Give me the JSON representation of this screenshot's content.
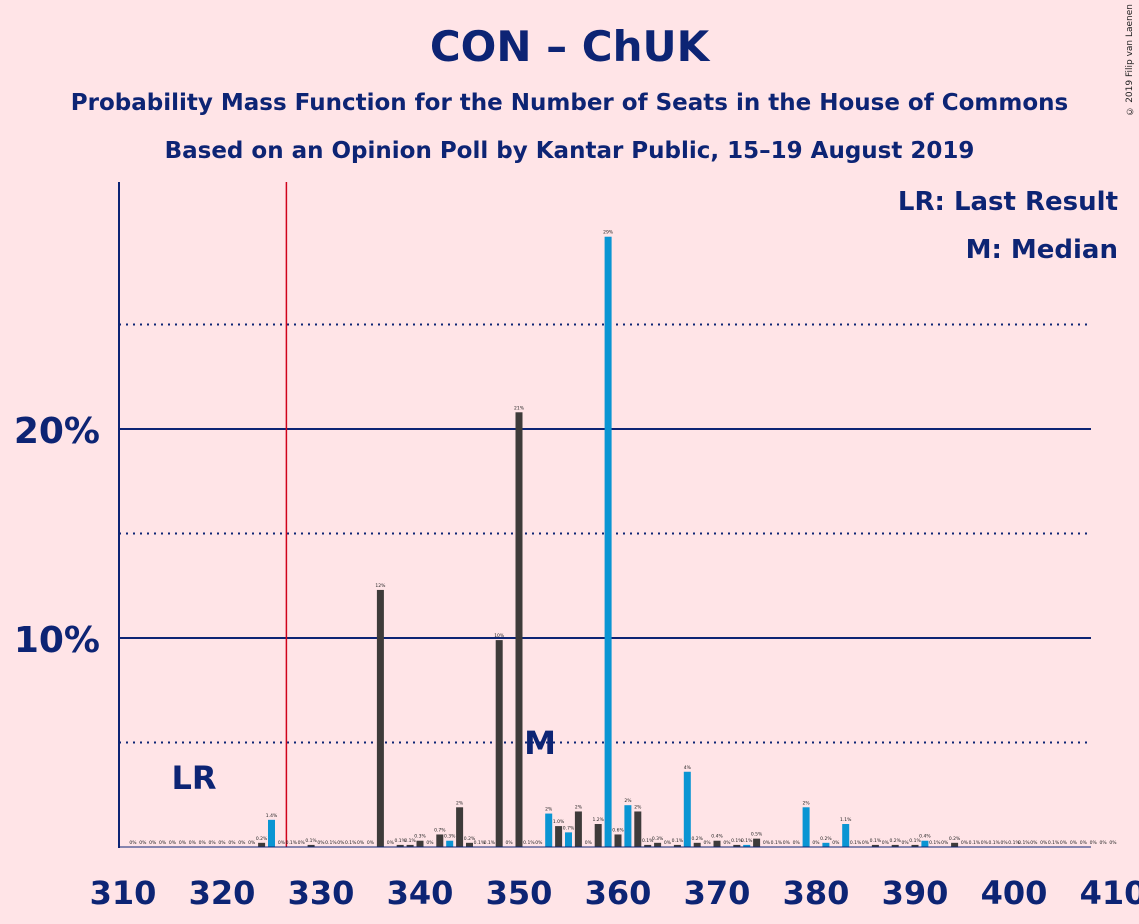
{
  "title": "CON – ChUK",
  "subtitle1": "Probability Mass Function for the Number of Seats in the House of Commons",
  "subtitle2": "Based on an Opinion Poll by Kantar Public, 15–19 August 2019",
  "copyright": "© 2019 Filip van Laenen",
  "legend": {
    "lr": "LR: Last Result",
    "median": "M: Median"
  },
  "colors": {
    "background": "#FFE4E7",
    "axis": "#0D2474",
    "bar_dark": "#3E3B3A",
    "bar_blue": "#0A95D3",
    "last_result_line": "#D0021B"
  },
  "chart_data": {
    "type": "bar",
    "x_range": [
      310,
      410
    ],
    "y_range": [
      0,
      32
    ],
    "x_ticks": [
      310,
      320,
      330,
      340,
      350,
      360,
      370,
      380,
      390,
      400,
      410
    ],
    "y_ticks": [
      {
        "value": 10,
        "label": "10%"
      },
      {
        "value": 20,
        "label": "20%"
      }
    ],
    "dotted_gridlines": [
      5,
      15,
      25
    ],
    "last_result": {
      "seat": 326,
      "label": "LR"
    },
    "median": {
      "seat": 353,
      "label": "M"
    },
    "bars": [
      {
        "seat": 311,
        "value": 0,
        "label": "0%",
        "color": "dark"
      },
      {
        "seat": 312,
        "value": 0,
        "label": "0%",
        "color": "dark"
      },
      {
        "seat": 313,
        "value": 0,
        "label": "0%",
        "color": "dark"
      },
      {
        "seat": 314,
        "value": 0,
        "label": "0%",
        "color": "dark"
      },
      {
        "seat": 315,
        "value": 0,
        "label": "0%",
        "color": "dark"
      },
      {
        "seat": 316,
        "value": 0,
        "label": "0%",
        "color": "dark"
      },
      {
        "seat": 317,
        "value": 0,
        "label": "0%",
        "color": "dark"
      },
      {
        "seat": 318,
        "value": 0,
        "label": "0%",
        "color": "dark"
      },
      {
        "seat": 319,
        "value": 0,
        "label": "0%",
        "color": "dark"
      },
      {
        "seat": 320,
        "value": 0,
        "label": "0%",
        "color": "dark"
      },
      {
        "seat": 321,
        "value": 0,
        "label": "0%",
        "color": "dark"
      },
      {
        "seat": 322,
        "value": 0,
        "label": "0%",
        "color": "dark"
      },
      {
        "seat": 323,
        "value": 0,
        "label": "0%",
        "color": "dark"
      },
      {
        "seat": 324,
        "value": 0.2,
        "label": "0.2%",
        "color": "dark"
      },
      {
        "seat": 325,
        "value": 1.3,
        "label": "1.4%",
        "color": "blue"
      },
      {
        "seat": 326,
        "value": 0,
        "label": "0%",
        "color": "dark"
      },
      {
        "seat": 327,
        "value": 0,
        "label": "0.1%",
        "color": "dark"
      },
      {
        "seat": 328,
        "value": 0,
        "label": "0%",
        "color": "dark"
      },
      {
        "seat": 329,
        "value": 0.1,
        "label": "0.1%",
        "color": "dark"
      },
      {
        "seat": 330,
        "value": 0,
        "label": "0%",
        "color": "dark"
      },
      {
        "seat": 331,
        "value": 0,
        "label": "0.1%",
        "color": "dark"
      },
      {
        "seat": 332,
        "value": 0,
        "label": "0%",
        "color": "dark"
      },
      {
        "seat": 333,
        "value": 0,
        "label": "0.1%",
        "color": "dark"
      },
      {
        "seat": 334,
        "value": 0,
        "label": "0%",
        "color": "dark"
      },
      {
        "seat": 335,
        "value": 0,
        "label": "0%",
        "color": "dark"
      },
      {
        "seat": 336,
        "value": 12.3,
        "label": "12%",
        "color": "dark"
      },
      {
        "seat": 337,
        "value": 0,
        "label": "0%",
        "color": "dark"
      },
      {
        "seat": 338,
        "value": 0.1,
        "label": "0.1%",
        "color": "dark"
      },
      {
        "seat": 339,
        "value": 0.1,
        "label": "0.1%",
        "color": "dark"
      },
      {
        "seat": 340,
        "value": 0.3,
        "label": "0.3%",
        "color": "dark"
      },
      {
        "seat": 341,
        "value": 0,
        "label": "0%",
        "color": "dark"
      },
      {
        "seat": 342,
        "value": 0.6,
        "label": "0.7%",
        "color": "dark"
      },
      {
        "seat": 343,
        "value": 0.3,
        "label": "0.3%",
        "color": "blue"
      },
      {
        "seat": 344,
        "value": 1.9,
        "label": "2%",
        "color": "dark"
      },
      {
        "seat": 345,
        "value": 0.2,
        "label": "0.2%",
        "color": "dark"
      },
      {
        "seat": 346,
        "value": 0,
        "label": "0.1%",
        "color": "dark"
      },
      {
        "seat": 347,
        "value": 0,
        "label": "0.1%",
        "color": "dark"
      },
      {
        "seat": 348,
        "value": 9.9,
        "label": "10%",
        "color": "dark"
      },
      {
        "seat": 349,
        "value": 0,
        "label": "0%",
        "color": "dark"
      },
      {
        "seat": 350,
        "value": 20.8,
        "label": "21%",
        "color": "dark"
      },
      {
        "seat": 351,
        "value": 0,
        "label": "0.1%",
        "color": "dark"
      },
      {
        "seat": 352,
        "value": 0,
        "label": "0%",
        "color": "dark"
      },
      {
        "seat": 353,
        "value": 1.6,
        "label": "2%",
        "color": "blue"
      },
      {
        "seat": 354,
        "value": 1.0,
        "label": "1.0%",
        "color": "dark"
      },
      {
        "seat": 355,
        "value": 0.7,
        "label": "0.7%",
        "color": "blue"
      },
      {
        "seat": 356,
        "value": 1.7,
        "label": "2%",
        "color": "dark"
      },
      {
        "seat": 357,
        "value": 0,
        "label": "0%",
        "color": "dark"
      },
      {
        "seat": 358,
        "value": 1.1,
        "label": "1.2%",
        "color": "dark"
      },
      {
        "seat": 359,
        "value": 29.2,
        "label": "29%",
        "color": "blue"
      },
      {
        "seat": 360,
        "value": 0.6,
        "label": "0.6%",
        "color": "dark"
      },
      {
        "seat": 361,
        "value": 2.0,
        "label": "2%",
        "color": "blue"
      },
      {
        "seat": 362,
        "value": 1.7,
        "label": "2%",
        "color": "dark"
      },
      {
        "seat": 363,
        "value": 0.1,
        "label": "0.1%",
        "color": "dark"
      },
      {
        "seat": 364,
        "value": 0.2,
        "label": "0.3%",
        "color": "dark"
      },
      {
        "seat": 365,
        "value": 0,
        "label": "0%",
        "color": "dark"
      },
      {
        "seat": 366,
        "value": 0.1,
        "label": "0.1%",
        "color": "dark"
      },
      {
        "seat": 367,
        "value": 3.6,
        "label": "4%",
        "color": "blue"
      },
      {
        "seat": 368,
        "value": 0.2,
        "label": "0.2%",
        "color": "dark"
      },
      {
        "seat": 369,
        "value": 0,
        "label": "0%",
        "color": "dark"
      },
      {
        "seat": 370,
        "value": 0.3,
        "label": "0.4%",
        "color": "dark"
      },
      {
        "seat": 371,
        "value": 0,
        "label": "0%",
        "color": "dark"
      },
      {
        "seat": 372,
        "value": 0.1,
        "label": "0.1%",
        "color": "dark"
      },
      {
        "seat": 373,
        "value": 0.1,
        "label": "0.1%",
        "color": "blue"
      },
      {
        "seat": 374,
        "value": 0.4,
        "label": "0.5%",
        "color": "dark"
      },
      {
        "seat": 375,
        "value": 0,
        "label": "0%",
        "color": "dark"
      },
      {
        "seat": 376,
        "value": 0,
        "label": "0.1%",
        "color": "dark"
      },
      {
        "seat": 377,
        "value": 0,
        "label": "0%",
        "color": "dark"
      },
      {
        "seat": 378,
        "value": 0,
        "label": "0%",
        "color": "dark"
      },
      {
        "seat": 379,
        "value": 1.9,
        "label": "2%",
        "color": "blue"
      },
      {
        "seat": 380,
        "value": 0,
        "label": "0%",
        "color": "dark"
      },
      {
        "seat": 381,
        "value": 0.2,
        "label": "0.2%",
        "color": "blue"
      },
      {
        "seat": 382,
        "value": 0,
        "label": "0%",
        "color": "dark"
      },
      {
        "seat": 383,
        "value": 1.1,
        "label": "1.1%",
        "color": "blue"
      },
      {
        "seat": 384,
        "value": 0,
        "label": "0.1%",
        "color": "dark"
      },
      {
        "seat": 385,
        "value": 0,
        "label": "0%",
        "color": "dark"
      },
      {
        "seat": 386,
        "value": 0.1,
        "label": "0.1%",
        "color": "dark"
      },
      {
        "seat": 387,
        "value": 0,
        "label": "0%",
        "color": "dark"
      },
      {
        "seat": 388,
        "value": 0.1,
        "label": "0.2%",
        "color": "dark"
      },
      {
        "seat": 389,
        "value": 0,
        "label": "0%",
        "color": "dark"
      },
      {
        "seat": 390,
        "value": 0.1,
        "label": "0.1%",
        "color": "dark"
      },
      {
        "seat": 391,
        "value": 0.3,
        "label": "0.4%",
        "color": "blue"
      },
      {
        "seat": 392,
        "value": 0,
        "label": "0.1%",
        "color": "dark"
      },
      {
        "seat": 393,
        "value": 0,
        "label": "0%",
        "color": "dark"
      },
      {
        "seat": 394,
        "value": 0.2,
        "label": "0.2%",
        "color": "dark"
      },
      {
        "seat": 395,
        "value": 0,
        "label": "0%",
        "color": "dark"
      },
      {
        "seat": 396,
        "value": 0,
        "label": "0.1%",
        "color": "dark"
      },
      {
        "seat": 397,
        "value": 0,
        "label": "0%",
        "color": "dark"
      },
      {
        "seat": 398,
        "value": 0,
        "label": "0.1%",
        "color": "dark"
      },
      {
        "seat": 399,
        "value": 0,
        "label": "0%",
        "color": "dark"
      },
      {
        "seat": 400,
        "value": 0,
        "label": "0.1%",
        "color": "dark"
      },
      {
        "seat": 401,
        "value": 0,
        "label": "0.1%",
        "color": "dark"
      },
      {
        "seat": 402,
        "value": 0,
        "label": "0%",
        "color": "dark"
      },
      {
        "seat": 403,
        "value": 0,
        "label": "0%",
        "color": "dark"
      },
      {
        "seat": 404,
        "value": 0,
        "label": "0.1%",
        "color": "dark"
      },
      {
        "seat": 405,
        "value": 0,
        "label": "0%",
        "color": "dark"
      },
      {
        "seat": 406,
        "value": 0,
        "label": "0%",
        "color": "dark"
      },
      {
        "seat": 407,
        "value": 0,
        "label": "0%",
        "color": "dark"
      },
      {
        "seat": 408,
        "value": 0,
        "label": "0%",
        "color": "dark"
      },
      {
        "seat": 409,
        "value": 0,
        "label": "0%",
        "color": "dark"
      },
      {
        "seat": 410,
        "value": 0,
        "label": "0%",
        "color": "dark"
      }
    ]
  }
}
